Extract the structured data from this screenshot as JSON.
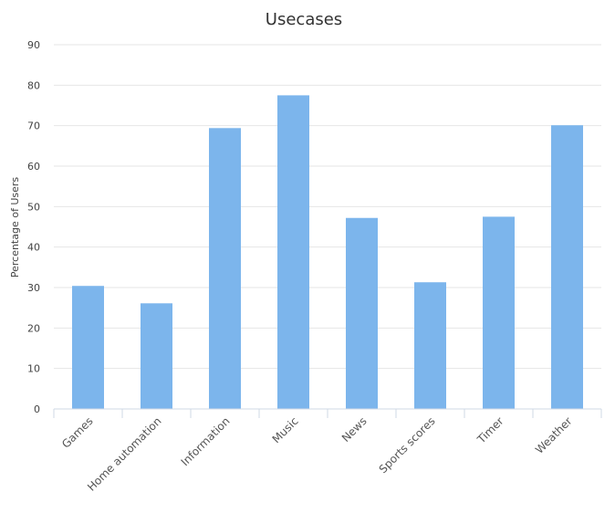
{
  "chart_data": {
    "type": "bar",
    "title": "Usecases",
    "xlabel": "",
    "ylabel": "Percentage of Users",
    "ylim": [
      0,
      90
    ],
    "y_ticks": [
      0,
      10,
      20,
      30,
      40,
      50,
      60,
      70,
      80,
      90
    ],
    "categories": [
      "Games",
      "Home automation",
      "Information",
      "Music",
      "News",
      "Sports scores",
      "Timer",
      "Weather"
    ],
    "values": [
      30.4,
      26.1,
      69.4,
      77.5,
      47.2,
      31.3,
      47.5,
      70.1
    ],
    "bar_color": "#7cb5ec",
    "grid": true,
    "legend": false
  }
}
